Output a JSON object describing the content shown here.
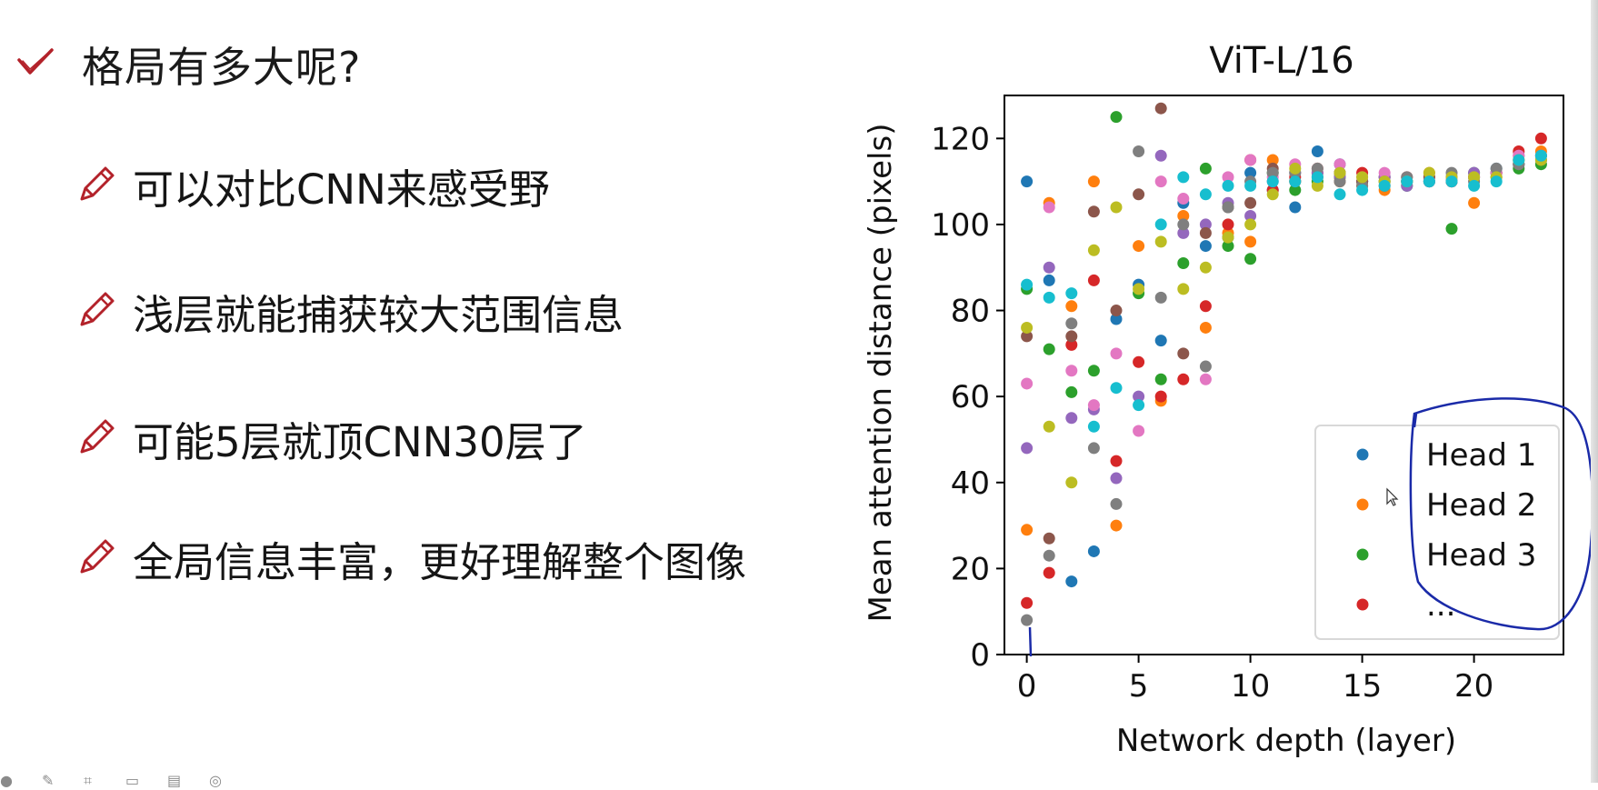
{
  "slide": {
    "heading": "格局有多大呢?",
    "bullets": [
      "可以对比CNN来感受野",
      "浅层就能捕获较大范围信息",
      "可能5层就顶CNN30层了",
      "全局信息丰富，更好理解整个图像"
    ],
    "heading_icon": "checkmark-icon",
    "bullet_icon": "pencil-icon",
    "accent_color": "#b3222a"
  },
  "chart_data": {
    "type": "scatter",
    "title": "ViT-L/16",
    "xlabel": "Network depth (layer)",
    "ylabel": "Mean attention distance (pixels)",
    "xlim": [
      -1,
      24
    ],
    "ylim": [
      0,
      130
    ],
    "xticks": [
      0,
      5,
      10,
      15,
      20
    ],
    "yticks": [
      0,
      20,
      40,
      60,
      80,
      100,
      120
    ],
    "legend": [
      "Head 1",
      "Head 2",
      "Head 3",
      "..."
    ],
    "legend_position": "lower-right",
    "colors": [
      "#1f77b4",
      "#ff7f0e",
      "#2ca02c",
      "#d62728",
      "#9467bd",
      "#8c564b",
      "#e377c2",
      "#7f7f7f",
      "#bcbd22",
      "#17becf"
    ],
    "series": [
      {
        "name": "Head 1",
        "values": [
          110,
          87,
          17,
          24,
          78,
          86,
          73,
          105,
          95,
          97,
          112,
          108,
          104,
          117,
          114,
          110,
          111,
          110,
          110,
          111,
          111,
          113,
          114,
          116
        ]
      },
      {
        "name": "Head 2",
        "values": [
          29,
          105,
          81,
          110,
          30,
          95,
          59,
          102,
          76,
          98,
          96,
          115,
          110,
          113,
          110,
          109,
          108,
          111,
          112,
          110,
          105,
          112,
          115,
          117
        ]
      },
      {
        "name": "Head 3",
        "values": [
          85,
          71,
          61,
          66,
          125,
          84,
          64,
          91,
          113,
          95,
          92,
          112,
          108,
          110,
          111,
          110,
          110,
          109,
          110,
          99,
          112,
          111,
          113,
          114
        ]
      },
      {
        "name": "",
        "values": [
          12,
          19,
          72,
          87,
          45,
          68,
          60,
          64,
          81,
          100,
          115,
          108,
          111,
          112,
          112,
          112,
          111,
          110,
          111,
          110,
          111,
          112,
          117,
          120
        ]
      },
      {
        "name": "",
        "values": [
          48,
          90,
          55,
          57,
          41,
          60,
          116,
          98,
          100,
          105,
          102,
          110,
          112,
          112,
          111,
          110,
          111,
          109,
          110,
          110,
          112,
          112,
          116,
          116
        ]
      },
      {
        "name": "",
        "values": [
          74,
          27,
          74,
          103,
          80,
          107,
          127,
          70,
          98,
          104,
          105,
          113,
          110,
          111,
          112,
          110,
          109,
          110,
          111,
          110,
          111,
          112,
          114,
          115
        ]
      },
      {
        "name": "",
        "values": [
          63,
          104,
          66,
          58,
          70,
          52,
          110,
          106,
          64,
          111,
          115,
          111,
          114,
          113,
          114,
          111,
          112,
          111,
          110,
          111,
          111,
          112,
          116,
          116
        ]
      },
      {
        "name": "",
        "values": [
          8,
          23,
          77,
          48,
          35,
          117,
          83,
          100,
          67,
          104,
          110,
          112,
          112,
          113,
          110,
          109,
          110,
          111,
          110,
          112,
          110,
          113,
          114,
          116
        ]
      },
      {
        "name": "",
        "values": [
          76,
          53,
          40,
          94,
          104,
          85,
          96,
          85,
          90,
          97,
          100,
          107,
          113,
          109,
          112,
          111,
          110,
          110,
          112,
          111,
          111,
          111,
          115,
          115
        ]
      },
      {
        "name": "",
        "values": [
          86,
          83,
          84,
          53,
          62,
          58,
          100,
          111,
          107,
          109,
          109,
          110,
          110,
          111,
          107,
          108,
          109,
          110,
          110,
          110,
          109,
          110,
          115,
          116
        ]
      }
    ]
  }
}
